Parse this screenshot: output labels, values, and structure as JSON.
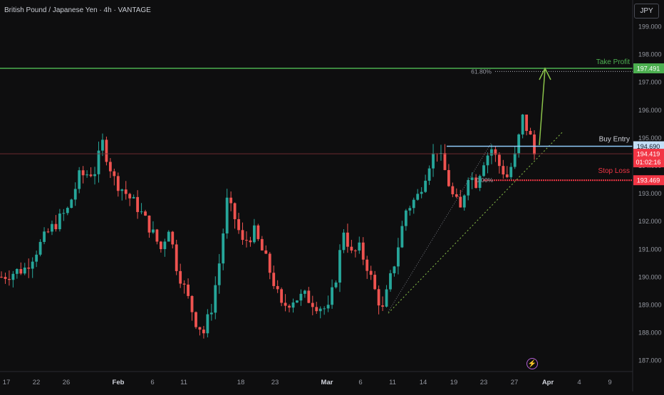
{
  "header": {
    "title": "British Pound / Japanese Yen · 4h · VANTAGE",
    "currency_button": "JPY"
  },
  "colors": {
    "background": "#0e0e0f",
    "up_candle": "#26a69a",
    "down_candle": "#ef5350",
    "take_profit": "#4caf50",
    "buy_entry": "#90caf9",
    "stop_loss": "#f23645",
    "arrow": "#8bc34a"
  },
  "icons": {
    "replay": "lightning-bolt-icon"
  },
  "chart_data": {
    "type": "candlestick",
    "title": "British Pound / Japanese Yen · 4h · VANTAGE",
    "ylim": [
      186.9,
      199.6
    ],
    "y_ticks": [
      187,
      188,
      189,
      190,
      191,
      192,
      193,
      194,
      195,
      196,
      197,
      198,
      199
    ],
    "y_tick_labels": [
      "187.000",
      "188.000",
      "189.000",
      "190.000",
      "191.000",
      "192.000",
      "193.000",
      "194.000",
      "195.000",
      "196.000",
      "197.000",
      "198.000",
      "199.000"
    ],
    "x_tick_labels": [
      "17",
      "22",
      "26",
      "Feb",
      "6",
      "11",
      "18",
      "23",
      "Mar",
      "6",
      "11",
      "14",
      "19",
      "23",
      "27",
      "Apr",
      "4",
      "9"
    ],
    "close_path": [
      [
        0,
        190.0
      ],
      [
        6,
        190.3
      ],
      [
        12,
        191.6
      ],
      [
        17,
        192.4
      ],
      [
        20,
        193.6
      ],
      [
        24,
        193.8
      ],
      [
        26,
        194.8
      ],
      [
        29,
        193.5
      ],
      [
        32,
        193.0
      ],
      [
        35,
        192.5
      ],
      [
        38,
        191.8
      ],
      [
        41,
        191.0
      ],
      [
        43,
        191.8
      ],
      [
        45,
        190.4
      ],
      [
        48,
        189.2
      ],
      [
        50,
        188.4
      ],
      [
        52,
        188.0
      ],
      [
        54,
        188.9
      ],
      [
        56,
        190.5
      ],
      [
        58,
        192.7
      ],
      [
        60,
        192.1
      ],
      [
        62,
        191.2
      ],
      [
        65,
        191.6
      ],
      [
        68,
        190.6
      ],
      [
        70,
        189.8
      ],
      [
        72,
        188.9
      ],
      [
        75,
        189.2
      ],
      [
        78,
        189.3
      ],
      [
        81,
        189.0
      ],
      [
        84,
        188.8
      ],
      [
        86,
        190.0
      ],
      [
        88,
        191.7
      ],
      [
        90,
        190.8
      ],
      [
        92,
        191.0
      ],
      [
        94,
        190.4
      ],
      [
        96,
        189.5
      ],
      [
        98,
        188.8
      ],
      [
        101,
        190.5
      ],
      [
        104,
        192.4
      ],
      [
        107,
        192.9
      ],
      [
        110,
        194.1
      ],
      [
        112,
        194.6
      ],
      [
        114,
        193.8
      ],
      [
        116,
        192.9
      ],
      [
        118,
        192.4
      ],
      [
        120,
        193.7
      ],
      [
        122,
        193.4
      ],
      [
        124,
        194.2
      ],
      [
        126,
        194.6
      ],
      [
        128,
        194.0
      ],
      [
        130,
        193.6
      ],
      [
        132,
        194.3
      ],
      [
        134,
        195.7
      ],
      [
        136,
        195.0
      ],
      [
        137,
        194.4
      ]
    ],
    "annotations": {
      "take_profit": {
        "label": "Take Profit",
        "value": "197.491",
        "y": 197.49
      },
      "buy_entry": {
        "label": "Buy Entry",
        "value": "194.690",
        "y": 194.69
      },
      "stop_loss": {
        "label": "Stop Loss",
        "value": "193.469",
        "y": 193.47
      },
      "current_price": {
        "value": "194.419",
        "y": 194.42,
        "countdown": "01:02:16"
      },
      "fib_618_label": "61.80%",
      "fib_0_label": "0.00%"
    }
  }
}
